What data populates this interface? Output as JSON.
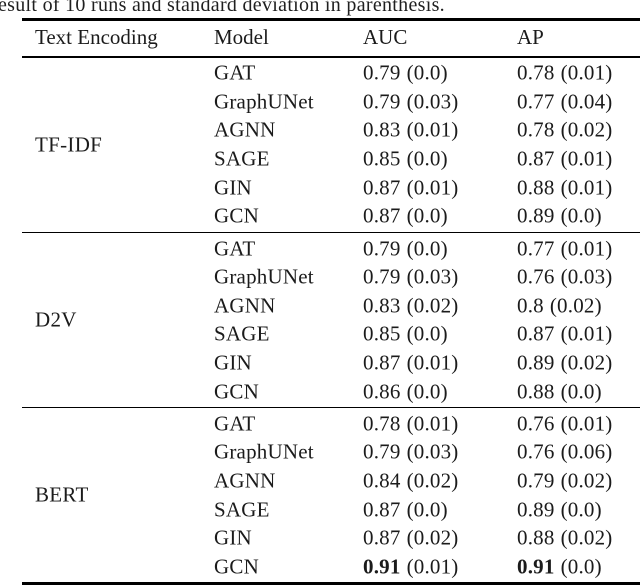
{
  "caption": "esult of 10 runs and standard deviation in parenthesis.",
  "colors": {
    "background": "#ffffff",
    "text": "#1b1b1b",
    "rule": "#000000"
  },
  "table": {
    "headers": {
      "encoding": "Text Encoding",
      "model": "Model",
      "auc": "AUC",
      "ap": "AP"
    },
    "groups": [
      {
        "encoding": "TF-IDF",
        "rows": [
          {
            "model": "GAT",
            "auc": "0.79",
            "auc_std": "(0.0)",
            "ap": "0.78",
            "ap_std": "(0.01)",
            "bold": false
          },
          {
            "model": "GraphUNet",
            "auc": "0.79",
            "auc_std": "(0.03)",
            "ap": "0.77",
            "ap_std": "(0.04)",
            "bold": false
          },
          {
            "model": "AGNN",
            "auc": "0.83",
            "auc_std": "(0.01)",
            "ap": "0.78",
            "ap_std": "(0.02)",
            "bold": false
          },
          {
            "model": "SAGE",
            "auc": "0.85",
            "auc_std": "(0.0)",
            "ap": "0.87",
            "ap_std": "(0.01)",
            "bold": false
          },
          {
            "model": "GIN",
            "auc": "0.87",
            "auc_std": "(0.01)",
            "ap": "0.88",
            "ap_std": "(0.01)",
            "bold": false
          },
          {
            "model": "GCN",
            "auc": "0.87",
            "auc_std": "(0.0)",
            "ap": "0.89",
            "ap_std": "(0.0)",
            "bold": false
          }
        ]
      },
      {
        "encoding": "D2V",
        "rows": [
          {
            "model": "GAT",
            "auc": "0.79",
            "auc_std": "(0.0)",
            "ap": "0.77",
            "ap_std": "(0.01)",
            "bold": false
          },
          {
            "model": "GraphUNet",
            "auc": "0.79",
            "auc_std": "(0.03)",
            "ap": "0.76",
            "ap_std": "(0.03)",
            "bold": false
          },
          {
            "model": "AGNN",
            "auc": "0.83",
            "auc_std": "(0.02)",
            "ap": "0.8",
            "ap_std": "(0.02)",
            "bold": false
          },
          {
            "model": "SAGE",
            "auc": "0.85",
            "auc_std": "(0.0)",
            "ap": "0.87",
            "ap_std": "(0.01)",
            "bold": false
          },
          {
            "model": "GIN",
            "auc": "0.87",
            "auc_std": "(0.01)",
            "ap": "0.89",
            "ap_std": "(0.02)",
            "bold": false
          },
          {
            "model": "GCN",
            "auc": "0.86",
            "auc_std": "(0.0)",
            "ap": "0.88",
            "ap_std": "(0.0)",
            "bold": false
          }
        ]
      },
      {
        "encoding": "BERT",
        "rows": [
          {
            "model": "GAT",
            "auc": "0.78",
            "auc_std": "(0.01)",
            "ap": "0.76",
            "ap_std": "(0.01)",
            "bold": false
          },
          {
            "model": "GraphUNet",
            "auc": "0.79",
            "auc_std": "(0.03)",
            "ap": "0.76",
            "ap_std": "(0.06)",
            "bold": false
          },
          {
            "model": "AGNN",
            "auc": "0.84",
            "auc_std": "(0.02)",
            "ap": "0.79",
            "ap_std": "(0.02)",
            "bold": false
          },
          {
            "model": "SAGE",
            "auc": "0.87",
            "auc_std": "(0.0)",
            "ap": "0.89",
            "ap_std": "(0.0)",
            "bold": false
          },
          {
            "model": "GIN",
            "auc": "0.87",
            "auc_std": "(0.02)",
            "ap": "0.88",
            "ap_std": "(0.02)",
            "bold": false
          },
          {
            "model": "GCN",
            "auc": "0.91",
            "auc_std": "(0.01)",
            "ap": "0.91",
            "ap_std": "(0.0)",
            "bold": true
          }
        ]
      }
    ]
  }
}
